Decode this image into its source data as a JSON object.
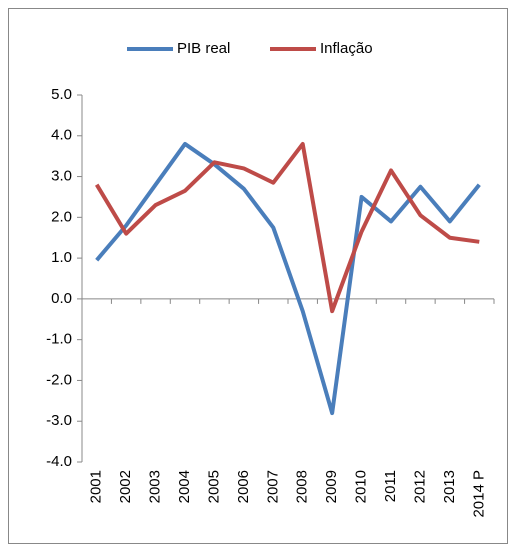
{
  "chart_data": {
    "type": "line",
    "categories": [
      "2001",
      "2002",
      "2003",
      "2004",
      "2005",
      "2006",
      "2007",
      "2008",
      "2009",
      "2010",
      "2011",
      "2012",
      "2013",
      "2014 P"
    ],
    "series": [
      {
        "name": "PIB real",
        "color": "#4a7ebb",
        "values": [
          0.95,
          1.8,
          2.8,
          3.8,
          3.3,
          2.7,
          1.75,
          -0.3,
          -2.8,
          2.5,
          1.9,
          2.75,
          1.9,
          2.8
        ]
      },
      {
        "name": "Inflação",
        "color": "#be4b48",
        "values": [
          2.8,
          1.6,
          2.3,
          2.65,
          3.35,
          3.2,
          2.85,
          3.8,
          -0.3,
          1.65,
          3.15,
          2.05,
          1.5,
          1.4
        ]
      }
    ],
    "ylim": [
      -4,
      5
    ],
    "yticks": [
      {
        "value": -4,
        "label": "-4.0"
      },
      {
        "value": -3,
        "label": "-3.0"
      },
      {
        "value": -2,
        "label": "-2.0"
      },
      {
        "value": -1,
        "label": "-1.0"
      },
      {
        "value": 0,
        "label": "0.0"
      },
      {
        "value": 1,
        "label": "1.0"
      },
      {
        "value": 2,
        "label": "2.0"
      },
      {
        "value": 3,
        "label": "3.0"
      },
      {
        "value": 4,
        "label": "4.0"
      },
      {
        "value": 5,
        "label": "5.0"
      }
    ],
    "legend": "top",
    "grid": false
  }
}
